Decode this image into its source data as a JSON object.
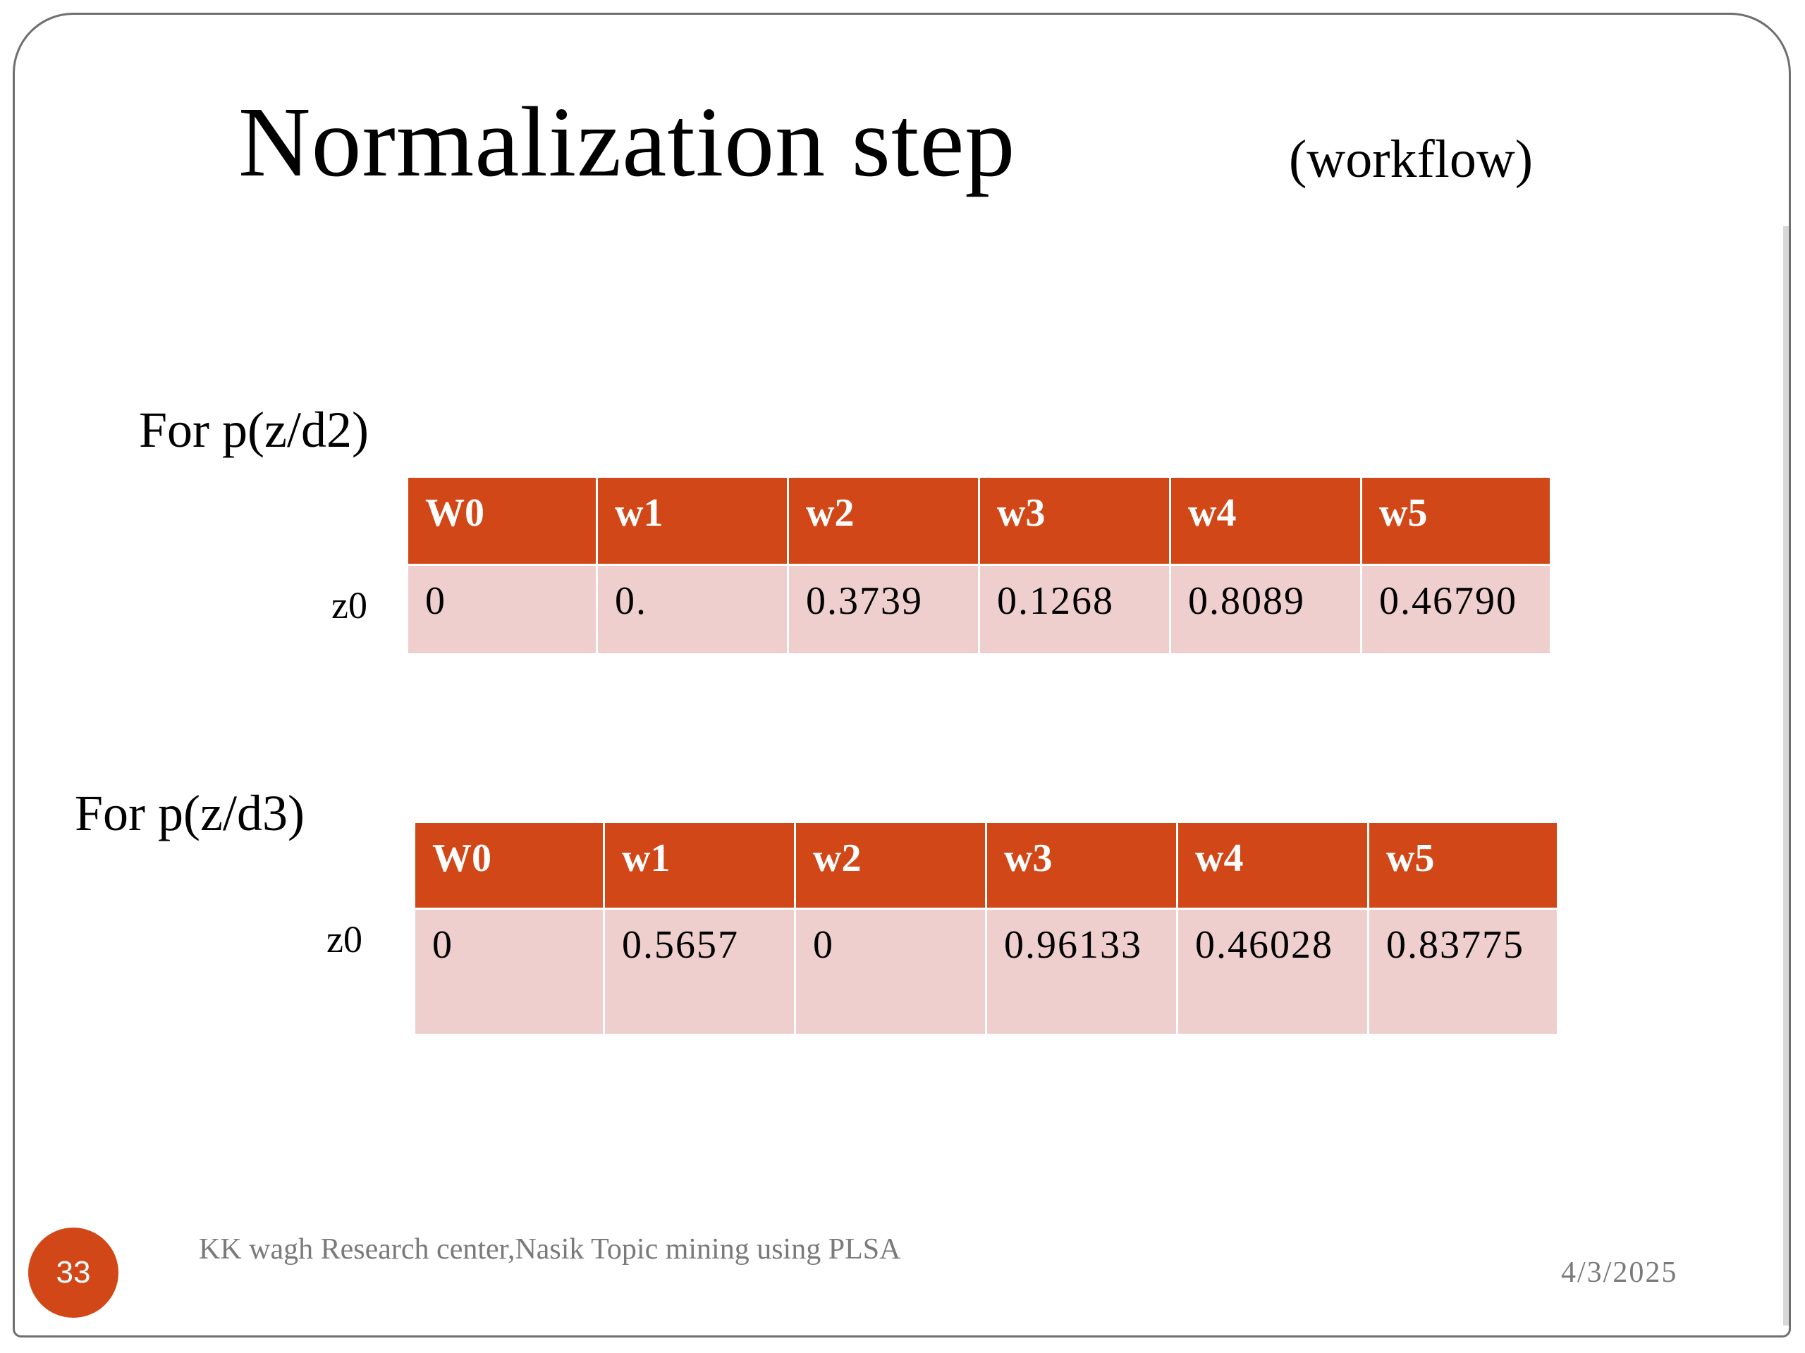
{
  "slide": {
    "title": "Normalization step",
    "subtitle": "(workflow)",
    "page_number": "33",
    "footer_text": "KK wagh Research center,Nasik    Topic mining  using PLSA",
    "date": "4/3/2025"
  },
  "tables": [
    {
      "label": "For p(z/d2)",
      "headers": [
        "W0",
        "w1",
        "w2",
        "w3",
        "w4",
        "w5"
      ],
      "row_label": "z0",
      "values": [
        "0",
        "0.",
        "0.3739",
        "0.1268",
        "0.8089",
        "0.46790"
      ]
    },
    {
      "label": "For p(z/d3)",
      "headers": [
        "W0",
        "w1",
        "w2",
        "w3",
        "w4",
        "w5"
      ],
      "row_label": "z0",
      "values": [
        "0",
        "0.5657",
        "0",
        "0.96133",
        "0.46028",
        "0.83775"
      ]
    }
  ],
  "colors": {
    "header_fill": "#d24717",
    "cell_fill": "#efcfcd",
    "badge_fill": "#d24717"
  }
}
